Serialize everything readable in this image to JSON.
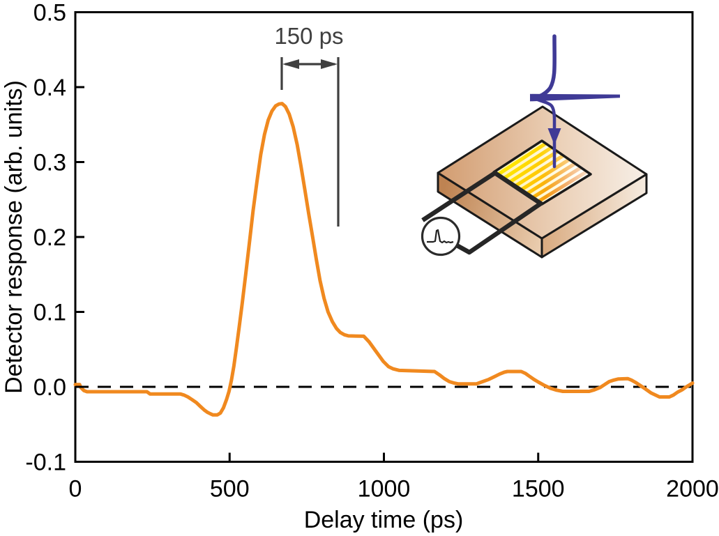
{
  "figure": {
    "background": "#ffffff",
    "xlabel": "Delay time (ps)",
    "ylabel": "Detector response (arb. units)",
    "xtick_labels": [
      "0",
      "500",
      "1000",
      "1500",
      "2000"
    ],
    "xtick_values": [
      0,
      500,
      1000,
      1500,
      2000
    ],
    "ytick_labels": [
      "0.5",
      "0.4",
      "0.3",
      "0.2",
      "0.1",
      "0.0",
      "-0.1"
    ],
    "ytick_values": [
      0.5,
      0.4,
      0.3,
      0.2,
      0.1,
      0.0,
      -0.1
    ],
    "annotation": {
      "label": "150 ps",
      "from_ps": 668,
      "to_ps": 852
    }
  },
  "chart_data": {
    "type": "line",
    "title": "",
    "xlabel": "Delay time (ps)",
    "ylabel": "Detector response (arb. units)",
    "xlim": [
      0,
      2000
    ],
    "ylim": [
      -0.1,
      0.5
    ],
    "grid": false,
    "legend": "none",
    "zero_line": "dashed-black",
    "annotations": [
      {
        "text": "150 ps",
        "from_ps": 668,
        "to_ps": 852,
        "marks": "peak width"
      }
    ],
    "series": [
      {
        "name": "detector response",
        "color": "#F0891F",
        "points": [
          [
            0,
            0.003
          ],
          [
            14,
            0.003
          ],
          [
            18,
            -0.001
          ],
          [
            28,
            -0.005
          ],
          [
            38,
            -0.0065
          ],
          [
            232,
            -0.0065
          ],
          [
            242,
            -0.0095
          ],
          [
            340,
            -0.0095
          ],
          [
            352,
            -0.011
          ],
          [
            365,
            -0.0135
          ],
          [
            378,
            -0.017
          ],
          [
            392,
            -0.021
          ],
          [
            405,
            -0.026
          ],
          [
            418,
            -0.031
          ],
          [
            428,
            -0.034
          ],
          [
            438,
            -0.036
          ],
          [
            446,
            -0.0375
          ],
          [
            460,
            -0.0375
          ],
          [
            470,
            -0.035
          ],
          [
            480,
            -0.028
          ],
          [
            490,
            -0.017
          ],
          [
            498,
            -0.006
          ],
          [
            506,
            0.009
          ],
          [
            514,
            0.028
          ],
          [
            522,
            0.052
          ],
          [
            531,
            0.08
          ],
          [
            541,
            0.112
          ],
          [
            552,
            0.15
          ],
          [
            564,
            0.192
          ],
          [
            576,
            0.235
          ],
          [
            589,
            0.275
          ],
          [
            601,
            0.31
          ],
          [
            613,
            0.337
          ],
          [
            625,
            0.356
          ],
          [
            637,
            0.368
          ],
          [
            649,
            0.375
          ],
          [
            660,
            0.3775
          ],
          [
            670,
            0.378
          ],
          [
            681,
            0.374
          ],
          [
            693,
            0.364
          ],
          [
            706,
            0.347
          ],
          [
            719,
            0.323
          ],
          [
            731,
            0.295
          ],
          [
            743,
            0.265
          ],
          [
            756,
            0.232
          ],
          [
            769,
            0.2
          ],
          [
            781,
            0.17
          ],
          [
            793,
            0.142
          ],
          [
            806,
            0.118
          ],
          [
            819,
            0.1
          ],
          [
            833,
            0.087
          ],
          [
            846,
            0.078
          ],
          [
            859,
            0.0725
          ],
          [
            872,
            0.0695
          ],
          [
            885,
            0.068
          ],
          [
            935,
            0.0675
          ],
          [
            952,
            0.06
          ],
          [
            975,
            0.047
          ],
          [
            998,
            0.034
          ],
          [
            1015,
            0.027
          ],
          [
            1030,
            0.024
          ],
          [
            1050,
            0.022
          ],
          [
            1164,
            0.0205
          ],
          [
            1180,
            0.016
          ],
          [
            1196,
            0.011
          ],
          [
            1212,
            0.007
          ],
          [
            1228,
            0.005
          ],
          [
            1240,
            0.004
          ],
          [
            1300,
            0.004
          ],
          [
            1320,
            0.007
          ],
          [
            1340,
            0.01
          ],
          [
            1360,
            0.014
          ],
          [
            1375,
            0.017
          ],
          [
            1390,
            0.0195
          ],
          [
            1400,
            0.0205
          ],
          [
            1445,
            0.0205
          ],
          [
            1458,
            0.018
          ],
          [
            1472,
            0.014
          ],
          [
            1486,
            0.01
          ],
          [
            1502,
            0.006
          ],
          [
            1520,
            0.002
          ],
          [
            1540,
            -0.002
          ],
          [
            1560,
            -0.0045
          ],
          [
            1580,
            -0.006
          ],
          [
            1665,
            -0.006
          ],
          [
            1682,
            -0.004
          ],
          [
            1700,
            -0.001
          ],
          [
            1715,
            0.003
          ],
          [
            1730,
            0.007
          ],
          [
            1745,
            0.009
          ],
          [
            1760,
            0.0105
          ],
          [
            1790,
            0.011
          ],
          [
            1802,
            0.009
          ],
          [
            1815,
            0.006
          ],
          [
            1830,
            0.002
          ],
          [
            1848,
            -0.003
          ],
          [
            1865,
            -0.008
          ],
          [
            1880,
            -0.011
          ],
          [
            1893,
            -0.0135
          ],
          [
            1925,
            -0.0135
          ],
          [
            1938,
            -0.011
          ],
          [
            1952,
            -0.007
          ],
          [
            1966,
            -0.004
          ],
          [
            1980,
            0
          ],
          [
            1992,
            0.003
          ],
          [
            2000,
            0.005
          ]
        ]
      }
    ]
  },
  "inset": {
    "description": "photoconductive detector chip with incident pulse and current-meter circle",
    "colors": {
      "pulse_navy": "#3F3A96",
      "chip_tan": "#D29C70",
      "chip_dark": "#BE8352",
      "chip_light": "#F7EFE7",
      "pad_yellow": "#FFE600",
      "pad_orange": "#ED7D1A",
      "wire_black": "#262626",
      "outline": "#1a1a1a"
    }
  },
  "style": {
    "curve_color": "#F0891F",
    "annotation_color": "#3f3f3f",
    "axis_color": "#000000"
  }
}
